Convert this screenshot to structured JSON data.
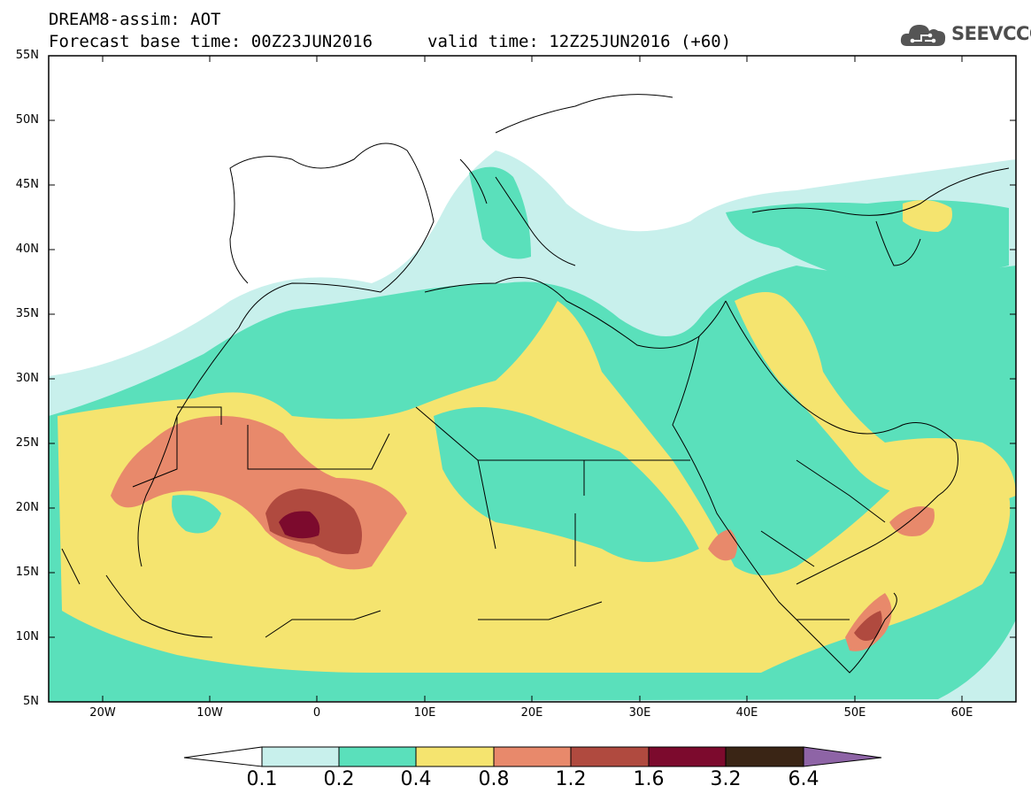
{
  "header": {
    "line1": "DREAM8-assim: AOT",
    "base_time": "Forecast base time: 00Z23JUN2016",
    "valid_time": "valid time: 12Z25JUN2016 (+60)"
  },
  "logo": {
    "text": "SEEVCCC",
    "icon": "cloud-icon"
  },
  "map": {
    "variable": "AOT",
    "lat_labels": [
      "55N",
      "50N",
      "45N",
      "40N",
      "35N",
      "30N",
      "25N",
      "20N",
      "15N",
      "10N",
      "5N"
    ],
    "lon_labels": [
      "20W",
      "10W",
      "0",
      "10E",
      "20E",
      "30E",
      "40E",
      "50E",
      "60E"
    ],
    "lat_range": [
      5,
      55
    ],
    "lon_range": [
      -25,
      65
    ]
  },
  "colorbar": {
    "labels": [
      "0.1",
      "0.2",
      "0.4",
      "0.8",
      "1.2",
      "1.6",
      "3.2",
      "6.4"
    ],
    "colors": [
      "#ffffff",
      "#c8f0ec",
      "#5ae0bb",
      "#f5e46f",
      "#e8896b",
      "#b04a3f",
      "#7c0a2d",
      "#3a2515",
      "#8e64a6"
    ]
  }
}
